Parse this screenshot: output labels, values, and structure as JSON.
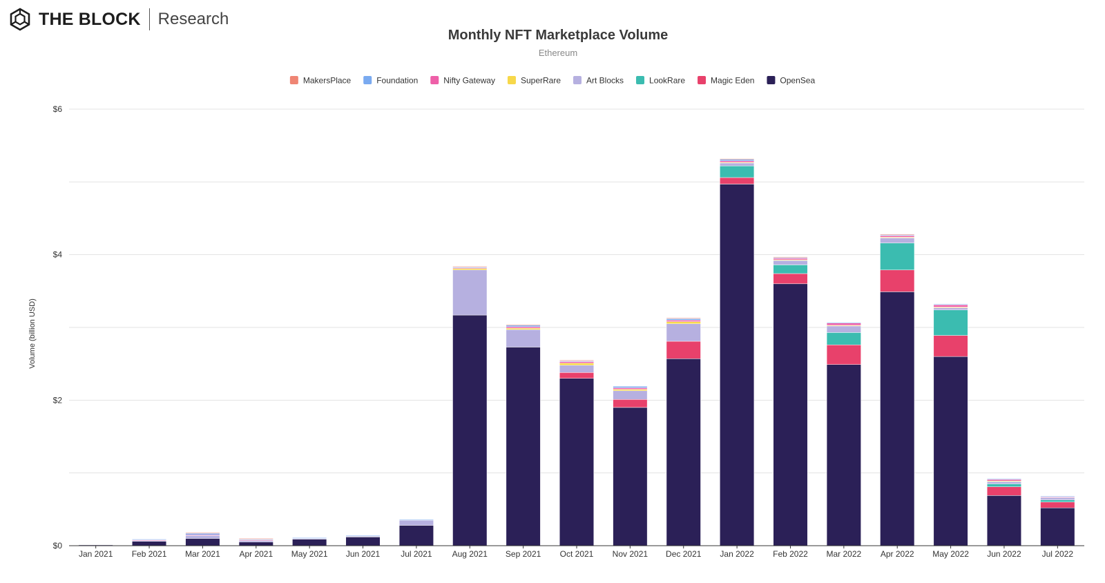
{
  "brand": {
    "name": "THE BLOCK",
    "sub": "Research",
    "logo_icon": "cube-logo-icon"
  },
  "chart_data": {
    "type": "bar",
    "stacked": true,
    "title": "Monthly NFT Marketplace Volume",
    "subtitle": "Ethereum",
    "xlabel": "",
    "ylabel": "Volume (billion USD)",
    "ylim": [
      0,
      6
    ],
    "yticks": [
      0,
      2,
      4,
      6
    ],
    "ytick_labels": [
      "$0",
      "$2",
      "$4",
      "$6"
    ],
    "grid": true,
    "legend_position": "top",
    "categories": [
      "Jan 2021",
      "Feb 2021",
      "Mar 2021",
      "Apr 2021",
      "May 2021",
      "Jun 2021",
      "Jul 2021",
      "Aug 2021",
      "Sep 2021",
      "Oct 2021",
      "Nov 2021",
      "Dec 2021",
      "Jan 2022",
      "Feb 2022",
      "Mar 2022",
      "Apr 2022",
      "May 2022",
      "Jun 2022",
      "Jul 2022"
    ],
    "legend_order": [
      "MakersPlace",
      "Foundation",
      "Nifty Gateway",
      "SuperRare",
      "Art Blocks",
      "LookRare",
      "Magic Eden",
      "OpenSea"
    ],
    "series": [
      {
        "name": "OpenSea",
        "color": "#2b2057",
        "values": [
          0.01,
          0.06,
          0.1,
          0.05,
          0.09,
          0.12,
          0.28,
          3.17,
          2.73,
          2.3,
          1.9,
          2.57,
          4.97,
          3.6,
          2.49,
          3.49,
          2.6,
          0.69,
          0.52
        ]
      },
      {
        "name": "Magic Eden",
        "color": "#e8416b",
        "values": [
          0,
          0,
          0,
          0,
          0,
          0,
          0,
          0,
          0,
          0.08,
          0.11,
          0.24,
          0.09,
          0.14,
          0.27,
          0.3,
          0.29,
          0.12,
          0.08
        ]
      },
      {
        "name": "LookRare",
        "color": "#3bbcb0",
        "values": [
          0,
          0,
          0,
          0,
          0,
          0,
          0,
          0,
          0,
          0,
          0,
          0,
          0.16,
          0.12,
          0.17,
          0.37,
          0.35,
          0.04,
          0.03
        ]
      },
      {
        "name": "Art Blocks",
        "color": "#b6b0e0",
        "values": [
          0,
          0.01,
          0.04,
          0.02,
          0.01,
          0.01,
          0.07,
          0.62,
          0.24,
          0.1,
          0.12,
          0.24,
          0.04,
          0.06,
          0.09,
          0.07,
          0.03,
          0.03,
          0.03
        ]
      },
      {
        "name": "SuperRare",
        "color": "#f7d84a",
        "values": [
          0,
          0,
          0,
          0,
          0,
          0,
          0,
          0.02,
          0.02,
          0.03,
          0.02,
          0.03,
          0.01,
          0.01,
          0.01,
          0.01,
          0.01,
          0.01,
          0
        ]
      },
      {
        "name": "Nifty Gateway",
        "color": "#ee5fa8",
        "values": [
          0,
          0.01,
          0.01,
          0.01,
          0,
          0,
          0,
          0.01,
          0.02,
          0.02,
          0.02,
          0.02,
          0.02,
          0.02,
          0.03,
          0.02,
          0.03,
          0.02,
          0.01
        ]
      },
      {
        "name": "Foundation",
        "color": "#7aaaf0",
        "values": [
          0,
          0.01,
          0.02,
          0.01,
          0.01,
          0.01,
          0.01,
          0.01,
          0.02,
          0.01,
          0.02,
          0.02,
          0.02,
          0.01,
          0.01,
          0.01,
          0.01,
          0.01,
          0.01
        ]
      },
      {
        "name": "MakersPlace",
        "color": "#ef8574",
        "values": [
          0,
          0,
          0.01,
          0.01,
          0,
          0,
          0,
          0.01,
          0.01,
          0.01,
          0,
          0.01,
          0.01,
          0.01,
          0,
          0.01,
          0,
          0,
          0
        ]
      }
    ]
  }
}
